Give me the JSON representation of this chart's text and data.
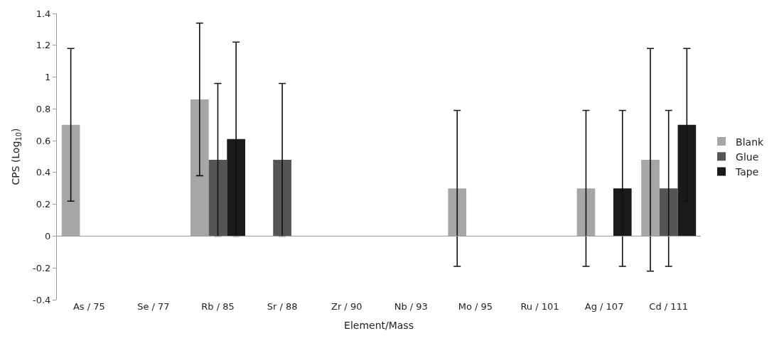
{
  "chart_data": {
    "type": "bar",
    "xlabel": "Element/Mass",
    "ylabel": "CPS (Log$_{10}$)",
    "categories": [
      "As / 75",
      "Se / 77",
      "Rb / 85",
      "Sr / 88",
      "Zr / 90",
      "Nb / 93",
      "Mo / 95",
      "Ru / 101",
      "Ag / 107",
      "Cd / 111"
    ],
    "series": [
      {
        "name": "Blank",
        "color": "#a6a6a6",
        "values": [
          0.7,
          null,
          0.86,
          null,
          null,
          null,
          0.3,
          null,
          0.3,
          0.48
        ],
        "errors": [
          0.48,
          null,
          0.48,
          null,
          null,
          null,
          0.49,
          null,
          0.49,
          0.7
        ]
      },
      {
        "name": "Glue",
        "color": "#555555",
        "values": [
          null,
          null,
          0.48,
          0.48,
          null,
          null,
          null,
          null,
          null,
          0.3
        ],
        "errors": [
          null,
          null,
          0.48,
          0.48,
          null,
          null,
          null,
          null,
          null,
          0.49
        ]
      },
      {
        "name": "Tape",
        "color": "#1a1a1a",
        "values": [
          null,
          null,
          0.61,
          null,
          null,
          null,
          null,
          null,
          0.3,
          0.7
        ],
        "errors": [
          null,
          null,
          0.61,
          null,
          null,
          null,
          null,
          null,
          0.49,
          0.48
        ]
      }
    ],
    "ylim": [
      -0.4,
      1.4
    ],
    "yticks": [
      -0.4,
      -0.2,
      0,
      0.2,
      0.4,
      0.6,
      0.8,
      1,
      1.2,
      1.4
    ],
    "legend": "right"
  }
}
